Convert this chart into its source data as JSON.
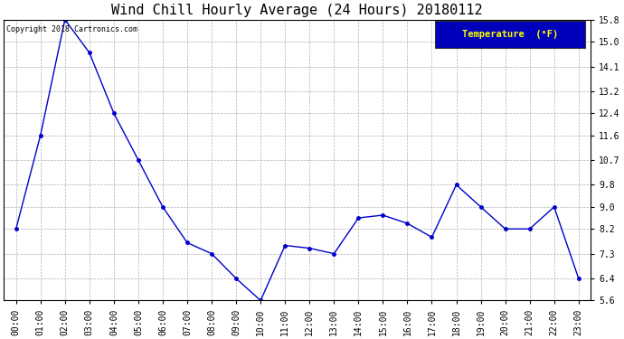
{
  "title": "Wind Chill Hourly Average (24 Hours) 20180112",
  "copyright_text": "Copyright 2018 Cartronics.com",
  "legend_label": "Temperature  (°F)",
  "hours": [
    "00:00",
    "01:00",
    "02:00",
    "03:00",
    "04:00",
    "05:00",
    "06:00",
    "07:00",
    "08:00",
    "09:00",
    "10:00",
    "11:00",
    "12:00",
    "13:00",
    "14:00",
    "15:00",
    "16:00",
    "17:00",
    "18:00",
    "19:00",
    "20:00",
    "21:00",
    "22:00",
    "23:00"
  ],
  "values": [
    8.2,
    11.6,
    15.8,
    14.6,
    12.4,
    10.7,
    9.0,
    7.7,
    7.3,
    6.4,
    5.6,
    7.6,
    7.5,
    7.3,
    8.6,
    8.7,
    8.4,
    7.9,
    9.8,
    9.0,
    8.2,
    8.2,
    9.0,
    6.4
  ],
  "ylim": [
    5.6,
    15.8
  ],
  "yticks": [
    5.6,
    6.4,
    7.3,
    8.2,
    9.0,
    9.8,
    10.7,
    11.6,
    12.4,
    13.2,
    14.1,
    15.0,
    15.8
  ],
  "line_color": "#0000cc",
  "marker_color": "#0000cc",
  "bg_color": "#ffffff",
  "plot_bg_color": "#ffffff",
  "grid_color": "#b0b0b0",
  "title_fontsize": 11,
  "tick_fontsize": 7,
  "copyright_fontsize": 6,
  "legend_bg": "#0000bb",
  "legend_text_color": "#ffff00",
  "legend_fontsize": 7.5
}
